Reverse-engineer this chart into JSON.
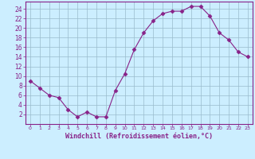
{
  "x": [
    0,
    1,
    2,
    3,
    4,
    5,
    6,
    7,
    8,
    9,
    10,
    11,
    12,
    13,
    14,
    15,
    16,
    17,
    18,
    19,
    20,
    21,
    22,
    23
  ],
  "y": [
    9,
    7.5,
    6,
    5.5,
    3,
    1.5,
    2.5,
    1.5,
    1.5,
    7,
    10.5,
    15.5,
    19,
    21.5,
    23,
    23.5,
    23.5,
    24.5,
    24.5,
    22.5,
    19,
    17.5,
    15,
    14
  ],
  "line_color": "#882288",
  "marker_color": "#882288",
  "bg_color": "#cceeff",
  "grid_color": "#99bbcc",
  "xlabel": "Windchill (Refroidissement éolien,°C)",
  "xlabel_color": "#882288",
  "ylabel_ticks": [
    2,
    4,
    6,
    8,
    10,
    12,
    14,
    16,
    18,
    20,
    22,
    24
  ],
  "xlim": [
    -0.5,
    23.5
  ],
  "ylim": [
    0,
    25.5
  ],
  "xtick_labels": [
    "0",
    "1",
    "2",
    "3",
    "4",
    "5",
    "6",
    "7",
    "8",
    "9",
    "10",
    "11",
    "12",
    "13",
    "14",
    "15",
    "16",
    "17",
    "18",
    "19",
    "20",
    "21",
    "22",
    "23"
  ],
  "tick_color": "#882288",
  "axis_color": "#882288"
}
